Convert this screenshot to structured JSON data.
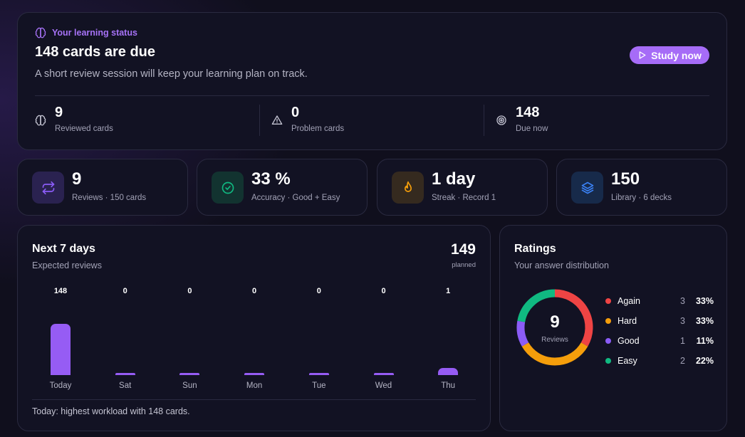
{
  "hero": {
    "eyebrow": "Your learning status",
    "title": "148 cards are due",
    "subtitle": "A short review session will keep your learning plan on track.",
    "cta_label": "Study now",
    "stats": [
      {
        "value": "9",
        "label": "Reviewed cards",
        "icon": "brain-icon"
      },
      {
        "value": "0",
        "label": "Problem cards",
        "icon": "warning-triangle-icon"
      },
      {
        "value": "148",
        "label": "Due now",
        "icon": "target-icon"
      }
    ]
  },
  "stat_cards": [
    {
      "value": "9",
      "label": "Reviews · 150 cards",
      "icon": "repeat-icon",
      "color": "#8b5cf6",
      "bg": "#2a2250"
    },
    {
      "value": "33 %",
      "label": "Accuracy · Good + Easy",
      "icon": "check-circle-icon",
      "color": "#10b981",
      "bg": "#123330"
    },
    {
      "value": "1 day",
      "label": "Streak · Record 1",
      "icon": "flame-icon",
      "color": "#f59e0b",
      "bg": "#352a1f"
    },
    {
      "value": "150",
      "label": "Library · 6 decks",
      "icon": "layers-icon",
      "color": "#3b82f6",
      "bg": "#172a4a"
    }
  ],
  "week": {
    "title": "Next 7 days",
    "subtitle": "Expected reviews",
    "planned_value": "149",
    "planned_label": "planned",
    "footer": "Today: highest workload with 148 cards."
  },
  "ratings": {
    "title": "Ratings",
    "subtitle": "Your answer distribution",
    "total": "9",
    "total_label": "Reviews",
    "items": [
      {
        "name": "Again",
        "count": "3",
        "pct": "33%",
        "color": "#ef4444"
      },
      {
        "name": "Hard",
        "count": "3",
        "pct": "33%",
        "color": "#f59e0b"
      },
      {
        "name": "Good",
        "count": "1",
        "pct": "11%",
        "color": "#8b5cf6"
      },
      {
        "name": "Easy",
        "count": "2",
        "pct": "22%",
        "color": "#10b981"
      }
    ]
  },
  "chart_data": [
    {
      "type": "bar",
      "categories": [
        "Today",
        "Sat",
        "Sun",
        "Mon",
        "Tue",
        "Wed",
        "Thu"
      ],
      "values": [
        148,
        0,
        0,
        0,
        0,
        0,
        1
      ],
      "title": "Next 7 days",
      "subtitle": "Expected reviews",
      "color": "#965cf4"
    },
    {
      "type": "pie",
      "donut": true,
      "categories": [
        "Again",
        "Hard",
        "Good",
        "Easy"
      ],
      "values": [
        3,
        3,
        1,
        2
      ],
      "colors": [
        "#ef4444",
        "#f59e0b",
        "#8b5cf6",
        "#10b981"
      ],
      "title": "Ratings",
      "legend": "right"
    }
  ]
}
